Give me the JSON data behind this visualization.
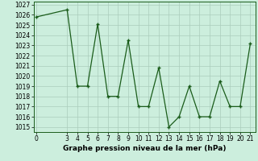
{
  "x": [
    0,
    3,
    4,
    5,
    6,
    7,
    8,
    9,
    10,
    11,
    12,
    13,
    14,
    15,
    16,
    17,
    18,
    19,
    20,
    21
  ],
  "y": [
    1025.8,
    1026.5,
    1019.0,
    1019.0,
    1025.1,
    1018.0,
    1018.0,
    1023.5,
    1017.0,
    1017.0,
    1020.8,
    1015.0,
    1016.0,
    1019.0,
    1016.0,
    1016.0,
    1019.5,
    1017.0,
    1017.0,
    1023.2
  ],
  "line_color": "#1a5c1a",
  "marker": "+",
  "bg_color": "#cceedd",
  "grid_color": "#aaccbb",
  "title": "Graphe pression niveau de la mer (hPa)",
  "ylim_min": 1014.5,
  "ylim_max": 1027.3,
  "yticks": [
    1015,
    1016,
    1017,
    1018,
    1019,
    1020,
    1021,
    1022,
    1023,
    1024,
    1025,
    1026,
    1027
  ],
  "xticks": [
    0,
    3,
    4,
    5,
    6,
    7,
    8,
    9,
    10,
    11,
    12,
    13,
    14,
    15,
    16,
    17,
    18,
    19,
    20,
    21
  ],
  "tick_fontsize": 5.5,
  "title_fontsize": 6.5,
  "title_fontweight": "bold",
  "linewidth": 0.9,
  "markersize": 3.5
}
